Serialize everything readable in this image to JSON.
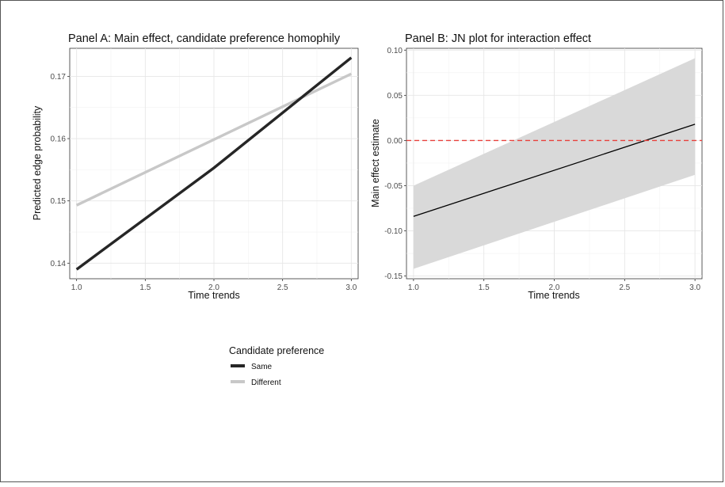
{
  "chart_data": [
    {
      "type": "line",
      "title": "Panel A: Main effect, candidate preference homophily",
      "xlabel": "Time trends",
      "ylabel": "Predicted edge probability",
      "xlim": [
        0.95,
        3.05
      ],
      "ylim": [
        0.1375,
        0.1745
      ],
      "xticks": [
        "1.0",
        "1.5",
        "2.0",
        "2.5",
        "3.0"
      ],
      "yticks": [
        "0.14",
        "0.15",
        "0.16",
        "0.17"
      ],
      "grid": true,
      "legend": {
        "title": "Candidate preference",
        "position": "bottom-right"
      },
      "series": [
        {
          "name": "Same",
          "color": "#262626",
          "x": [
            1.0,
            2.0,
            3.0
          ],
          "y": [
            0.139,
            0.1553,
            0.173
          ]
        },
        {
          "name": "Different",
          "color": "#c8c8c8",
          "x": [
            1.0,
            3.0
          ],
          "y": [
            0.1493,
            0.1704
          ]
        }
      ]
    },
    {
      "type": "line",
      "title": "Panel B: JN plot for interaction effect",
      "xlabel": "Time trends",
      "ylabel": "Main effect estimate",
      "xlim": [
        0.95,
        3.05
      ],
      "ylim": [
        -0.153,
        0.102
      ],
      "xticks": [
        "1.0",
        "1.5",
        "2.0",
        "2.5",
        "3.0"
      ],
      "yticks": [
        "-0.15",
        "-0.10",
        "-0.05",
        "0.00",
        "0.05",
        "0.10"
      ],
      "grid": true,
      "series": [
        {
          "color": "#000000",
          "x": [
            1.0,
            3.0
          ],
          "y": [
            -0.084,
            0.018
          ]
        }
      ],
      "band": {
        "color": "#d9d9d9",
        "x": [
          1.0,
          3.0
        ],
        "upper": [
          -0.05,
          0.091
        ],
        "lower": [
          -0.142,
          -0.038
        ]
      },
      "reference_line": {
        "y": 0.0,
        "color": "#e8413c",
        "style": "dashed"
      }
    }
  ]
}
